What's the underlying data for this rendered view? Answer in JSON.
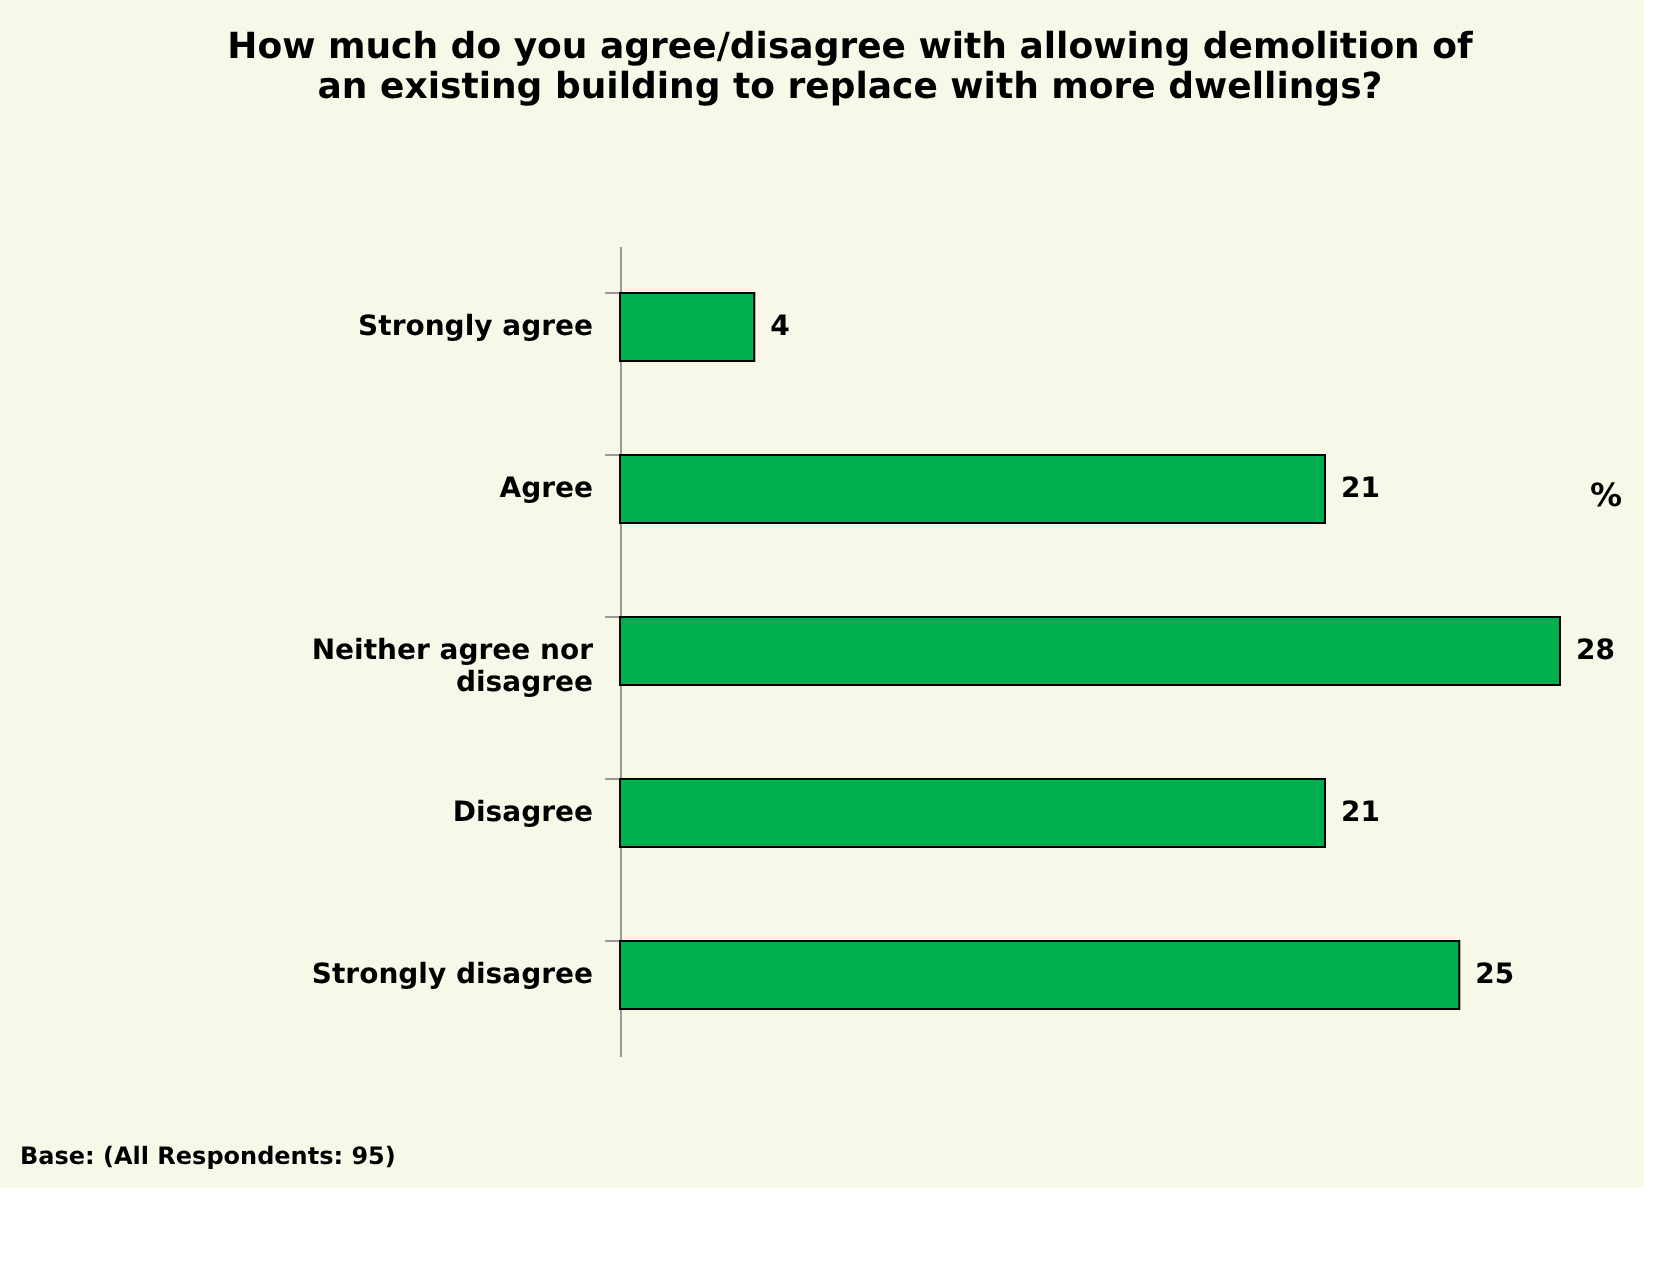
{
  "chart_data": {
    "type": "bar",
    "orientation": "horizontal",
    "title": "How much do you agree/disagree with allowing demolition of an existing building to replace with more dwellings?",
    "categories": [
      "Strongly agree",
      "Agree",
      "Neither agree nor disagree",
      "Disagree",
      "Strongly  disagree"
    ],
    "values": [
      4,
      21,
      28,
      21,
      25
    ],
    "color": "#00b050",
    "data_labels": true,
    "grid": false,
    "annotations": [
      "%",
      "Base: (All Respondents: 95)"
    ]
  }
}
